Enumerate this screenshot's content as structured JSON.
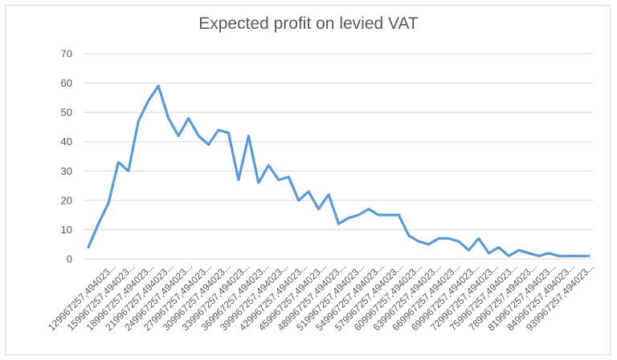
{
  "chart_data": {
    "type": "line",
    "title": "Expected profit on levied VAT",
    "xlabel": "",
    "ylabel": "",
    "ylim": [
      0,
      70
    ],
    "yticks": [
      0,
      10,
      20,
      30,
      40,
      50,
      60,
      70
    ],
    "grid": true,
    "legend": "none",
    "line_color": "#5b9bd5",
    "x_tick_labels": [
      "129967257,494023...",
      "159967257,494023...",
      "189967257,494023...",
      "219967257,494023...",
      "249967257,494023...",
      "279967257,494023...",
      "309967257,494023...",
      "339967257,494023...",
      "369967257,494023...",
      "399967257,494023...",
      "429967257,494023...",
      "459967257,494023...",
      "489967257,494023...",
      "519967257,494023...",
      "549967257,494023...",
      "579967257,494023...",
      "609967257,494023...",
      "639967257,494023...",
      "669967257,494023...",
      "699967257,494023...",
      "729967257,494023...",
      "759967257,494023...",
      "789967257,494023...",
      "819967257,494023...",
      "849967257,494023...",
      "939967257,494023..."
    ],
    "series": [
      {
        "values": [
          4,
          12,
          19,
          33,
          30,
          47,
          54,
          59,
          48,
          42,
          48,
          42,
          39,
          44,
          43,
          27,
          42,
          26,
          32,
          27,
          28,
          20,
          23,
          17,
          22,
          12,
          14,
          15,
          17,
          15,
          15,
          15,
          8,
          6,
          5,
          7,
          7,
          6,
          3,
          7,
          2,
          4,
          1,
          3,
          2,
          1,
          2,
          1,
          1,
          1,
          1
        ]
      }
    ]
  }
}
